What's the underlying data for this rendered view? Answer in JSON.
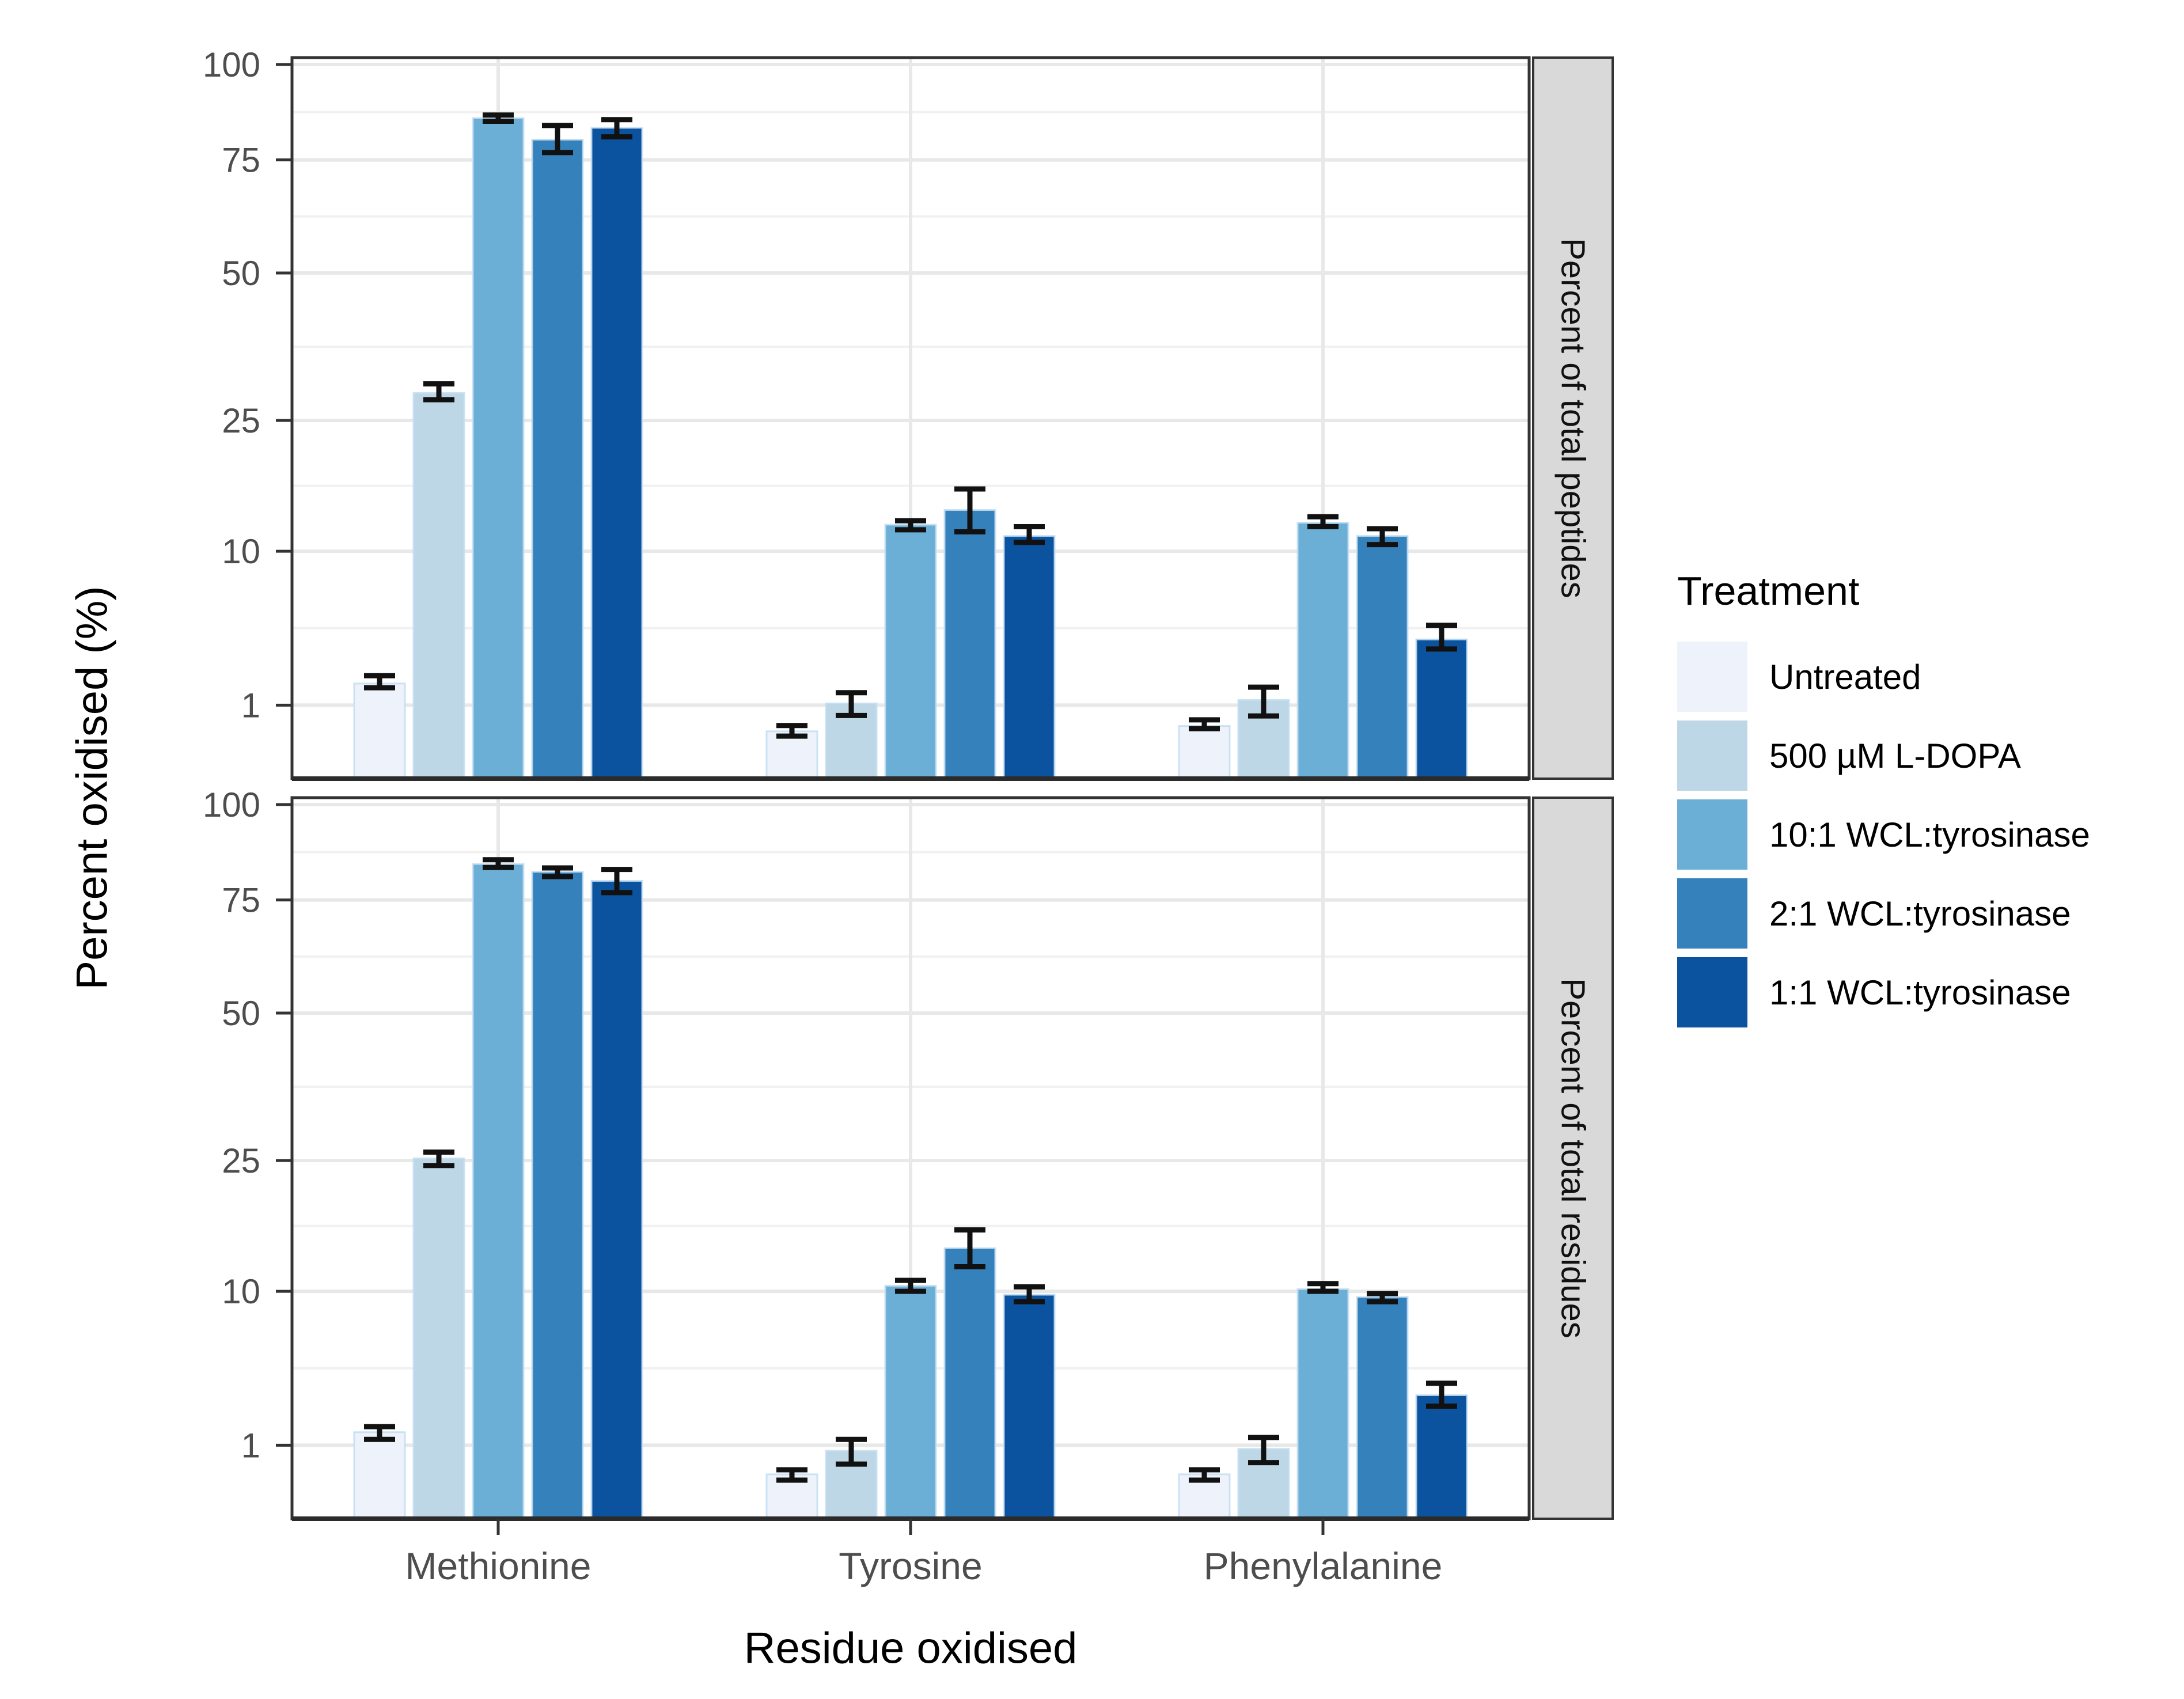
{
  "figure": {
    "y_axis_title": "Percent oxidised (%)",
    "x_axis_title": "Residue oxidised",
    "axis_text_color": "#4d4d4d",
    "panel_border_color": "#333333",
    "grid_major_color": "#e8e8e8",
    "grid_minor_color": "#f1f1f1",
    "strip_bg_color": "#d9d9d9",
    "errorbar_color": "#111111"
  },
  "legend": {
    "title": "Treatment",
    "entries": [
      {
        "label": "Untreated",
        "color": "#edf2fb"
      },
      {
        "label": "500 µM L-DOPA",
        "color": "#bdd7e7"
      },
      {
        "label": "10:1 WCL:tyrosinase",
        "color": "#6baed6"
      },
      {
        "label": "2:1 WCL:tyrosinase",
        "color": "#3581bc"
      },
      {
        "label": "1:1 WCL:tyrosinase",
        "color": "#0b539e"
      }
    ]
  },
  "chart_data": [
    {
      "type": "bar",
      "facet": "Percent of total peptides",
      "categories": [
        "Methionine",
        "Tyrosine",
        "Phenylalanine"
      ],
      "xlabel": "Residue oxidised",
      "ylabel": "Percent oxidised (%)",
      "yscale": "sqrt",
      "ylim": [
        0,
        100
      ],
      "y_ticks": [
        1,
        10,
        25,
        50,
        75,
        100
      ],
      "grid": "major+minor",
      "legend_position": "right",
      "series": [
        {
          "name": "Untreated",
          "color": "#edf2fb",
          "values": [
            1.7,
            0.4,
            0.5
          ],
          "errors": [
            [
              1.55,
              2.0
            ],
            [
              0.32,
              0.51
            ],
            [
              0.45,
              0.63
            ]
          ]
        },
        {
          "name": "500 µM L-DOPA",
          "color": "#bdd7e7",
          "values": [
            29.0,
            1.05,
            1.15
          ],
          "errors": [
            [
              28.0,
              30.4
            ],
            [
              0.73,
              1.38
            ],
            [
              0.72,
              1.57
            ]
          ]
        },
        {
          "name": "10:1 WCL:tyrosinase",
          "color": "#6baed6",
          "values": [
            85.5,
            12.5,
            12.7
          ],
          "errors": [
            [
              84.7,
              86.3
            ],
            [
              12.0,
              12.9
            ],
            [
              12.3,
              13.3
            ]
          ]
        },
        {
          "name": "2:1 WCL:tyrosinase",
          "color": "#3581bc",
          "values": [
            80.0,
            14.0,
            11.4
          ],
          "errors": [
            [
              76.8,
              83.6
            ],
            [
              11.8,
              16.3
            ],
            [
              10.6,
              12.1
            ]
          ]
        },
        {
          "name": "1:1 WCL:tyrosinase",
          "color": "#0b539e",
          "values": [
            83.0,
            11.4,
            3.7
          ],
          "errors": [
            [
              80.7,
              85.1
            ],
            [
              10.8,
              12.3
            ],
            [
              3.2,
              4.5
            ]
          ]
        }
      ]
    },
    {
      "type": "bar",
      "facet": "Percent of total residues",
      "categories": [
        "Methionine",
        "Tyrosine",
        "Phenylalanine"
      ],
      "xlabel": "Residue oxidised",
      "ylabel": "Percent oxidised (%)",
      "yscale": "sqrt",
      "ylim": [
        0,
        100
      ],
      "y_ticks": [
        1,
        10,
        25,
        50,
        75,
        100
      ],
      "grid": "major+minor",
      "legend_position": "right",
      "series": [
        {
          "name": "Untreated",
          "color": "#edf2fb",
          "values": [
            1.4,
            0.35,
            0.35
          ],
          "errors": [
            [
              1.17,
              1.59
            ],
            [
              0.26,
              0.43
            ],
            [
              0.26,
              0.43
            ]
          ]
        },
        {
          "name": "500 µM L-DOPA",
          "color": "#bdd7e7",
          "values": [
            25.3,
            0.85,
            0.9
          ],
          "errors": [
            [
              24.3,
              26.2
            ],
            [
              0.54,
              1.17
            ],
            [
              0.57,
              1.23
            ]
          ]
        },
        {
          "name": "10:1 WCL:tyrosinase",
          "color": "#6baed6",
          "values": [
            84.0,
            10.5,
            10.2
          ],
          "errors": [
            [
              83.1,
              85.1
            ],
            [
              10.0,
              11.0
            ],
            [
              10.0,
              10.7
            ]
          ]
        },
        {
          "name": "2:1 WCL:tyrosinase",
          "color": "#3581bc",
          "values": [
            82.0,
            14.2,
            9.5
          ],
          "errors": [
            [
              80.8,
              83.0
            ],
            [
              12.3,
              16.2
            ],
            [
              9.1,
              9.8
            ]
          ]
        },
        {
          "name": "1:1 WCL:tyrosinase",
          "color": "#0b539e",
          "values": [
            79.7,
            9.7,
            2.9
          ],
          "errors": [
            [
              76.8,
              82.6
            ],
            [
              9.1,
              10.4
            ],
            [
              2.4,
              3.5
            ]
          ]
        }
      ]
    }
  ]
}
